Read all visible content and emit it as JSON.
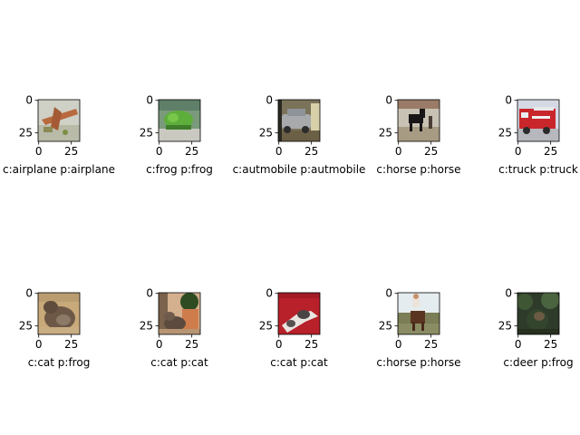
{
  "chart_data": {
    "type": "image-grid",
    "rows": 2,
    "cols": 5,
    "x_ticks": [
      "0",
      "25"
    ],
    "y_ticks": [
      "0",
      "25"
    ],
    "panels": [
      {
        "label": "c:airplane p:airplane",
        "scene": "airplane"
      },
      {
        "label": "c:frog p:frog",
        "scene": "frog"
      },
      {
        "label": "c:autmobile p:autmobile",
        "scene": "automobile"
      },
      {
        "label": "c:horse p:horse",
        "scene": "horse-dark"
      },
      {
        "label": "c:truck p:truck",
        "scene": "truck"
      },
      {
        "label": "c:cat p:frog",
        "scene": "cat-tan"
      },
      {
        "label": "c:cat p:cat",
        "scene": "cat-pot"
      },
      {
        "label": "c:cat p:cat",
        "scene": "cat-red"
      },
      {
        "label": "c:horse p:horse",
        "scene": "horse-rider"
      },
      {
        "label": "c:deer p:frog",
        "scene": "deer-forest"
      }
    ]
  }
}
